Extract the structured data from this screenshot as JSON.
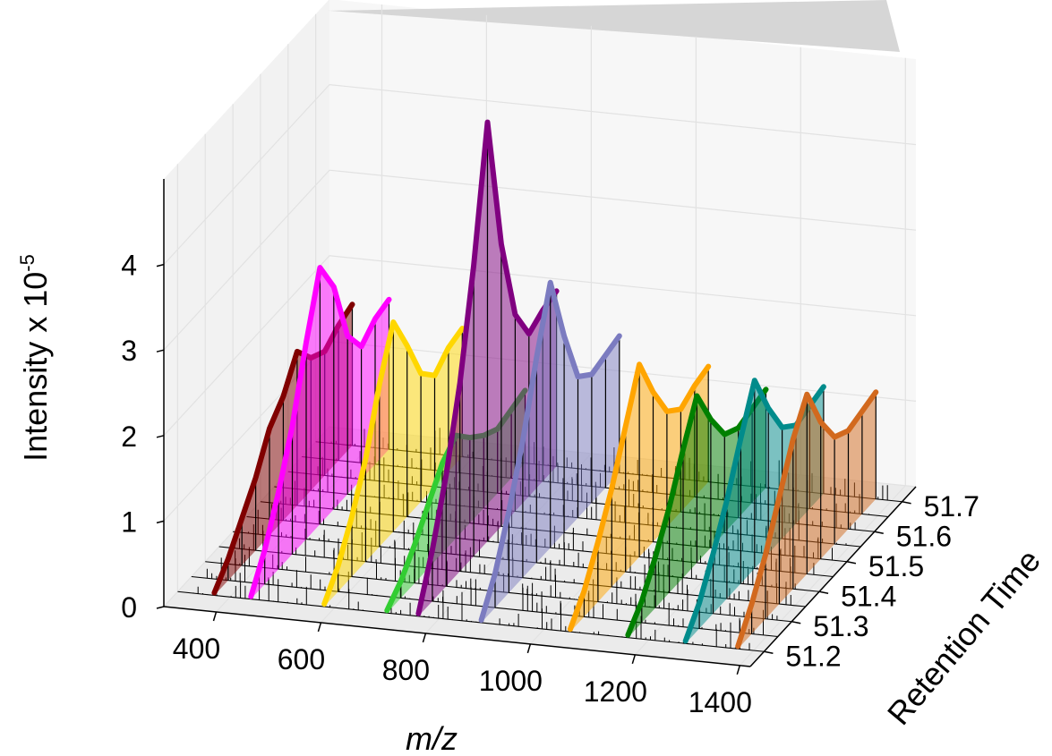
{
  "chart_data": {
    "type": "area",
    "title": "",
    "xlabel": "m/z",
    "ylabel": "Retention Time",
    "zlabel": "Intensity x 10",
    "zlabel_exponent": "-5",
    "xlim": [
      300,
      1420
    ],
    "ylim": [
      51.15,
      51.75
    ],
    "zlim": [
      0,
      5
    ],
    "x_ticks": [
      400,
      600,
      800,
      1000,
      1200,
      1400
    ],
    "y_ticks": [
      51.2,
      51.3,
      51.4,
      51.5,
      51.6,
      51.7
    ],
    "z_ticks": [
      0,
      1,
      2,
      3,
      4
    ],
    "retention_times": [
      51.2,
      51.25,
      51.3,
      51.35,
      51.4,
      51.45,
      51.5,
      51.55,
      51.6,
      51.65,
      51.7
    ],
    "grid": true,
    "series": [
      {
        "mz": 370,
        "color": "#800000",
        "intensities": [
          0.03,
          0.25,
          0.55,
          0.85,
          1.25,
          1.45,
          1.8,
          1.55,
          1.45,
          1.58,
          1.65
        ]
      },
      {
        "mz": 440,
        "color": "#ff00ff",
        "intensities": [
          0.03,
          0.4,
          0.9,
          1.5,
          2.3,
          3.0,
          2.6,
          1.85,
          1.55,
          1.7,
          1.75
        ]
      },
      {
        "mz": 580,
        "color": "#ffd700",
        "intensities": [
          0.03,
          0.3,
          0.7,
          1.2,
          1.9,
          2.45,
          2.0,
          1.5,
          1.3,
          1.45,
          1.5
        ]
      },
      {
        "mz": 700,
        "color": "#32cd32",
        "intensities": [
          0.03,
          0.2,
          0.45,
          0.75,
          1.05,
          1.2,
          1.0,
          0.85,
          0.75,
          0.8,
          0.85
        ]
      },
      {
        "mz": 760,
        "color": "#800080",
        "intensities": [
          0.03,
          0.6,
          1.3,
          2.2,
          3.4,
          4.9,
          3.3,
          2.3,
          1.9,
          2.0,
          2.05
        ]
      },
      {
        "mz": 880,
        "color": "#7b7bc0",
        "intensities": [
          0.03,
          0.4,
          0.95,
          1.6,
          2.4,
          3.1,
          2.3,
          1.65,
          1.5,
          1.55,
          1.6
        ]
      },
      {
        "mz": 1050,
        "color": "#ffa500",
        "intensities": [
          0.03,
          0.3,
          0.7,
          1.15,
          1.7,
          2.25,
          1.75,
          1.35,
          1.2,
          1.3,
          1.35
        ]
      },
      {
        "mz": 1160,
        "color": "#008000",
        "intensities": [
          0.03,
          0.25,
          0.6,
          1.0,
          1.5,
          1.95,
          1.5,
          1.15,
          1.05,
          1.1,
          1.15
        ]
      },
      {
        "mz": 1270,
        "color": "#008b8b",
        "intensities": [
          0.03,
          0.3,
          0.7,
          1.15,
          1.7,
          2.2,
          1.7,
          1.3,
          1.15,
          1.2,
          1.25
        ]
      },
      {
        "mz": 1370,
        "color": "#d2691e",
        "intensities": [
          0.03,
          0.35,
          0.75,
          1.25,
          1.75,
          2.1,
          1.6,
          1.25,
          1.15,
          1.2,
          1.25
        ]
      }
    ]
  }
}
